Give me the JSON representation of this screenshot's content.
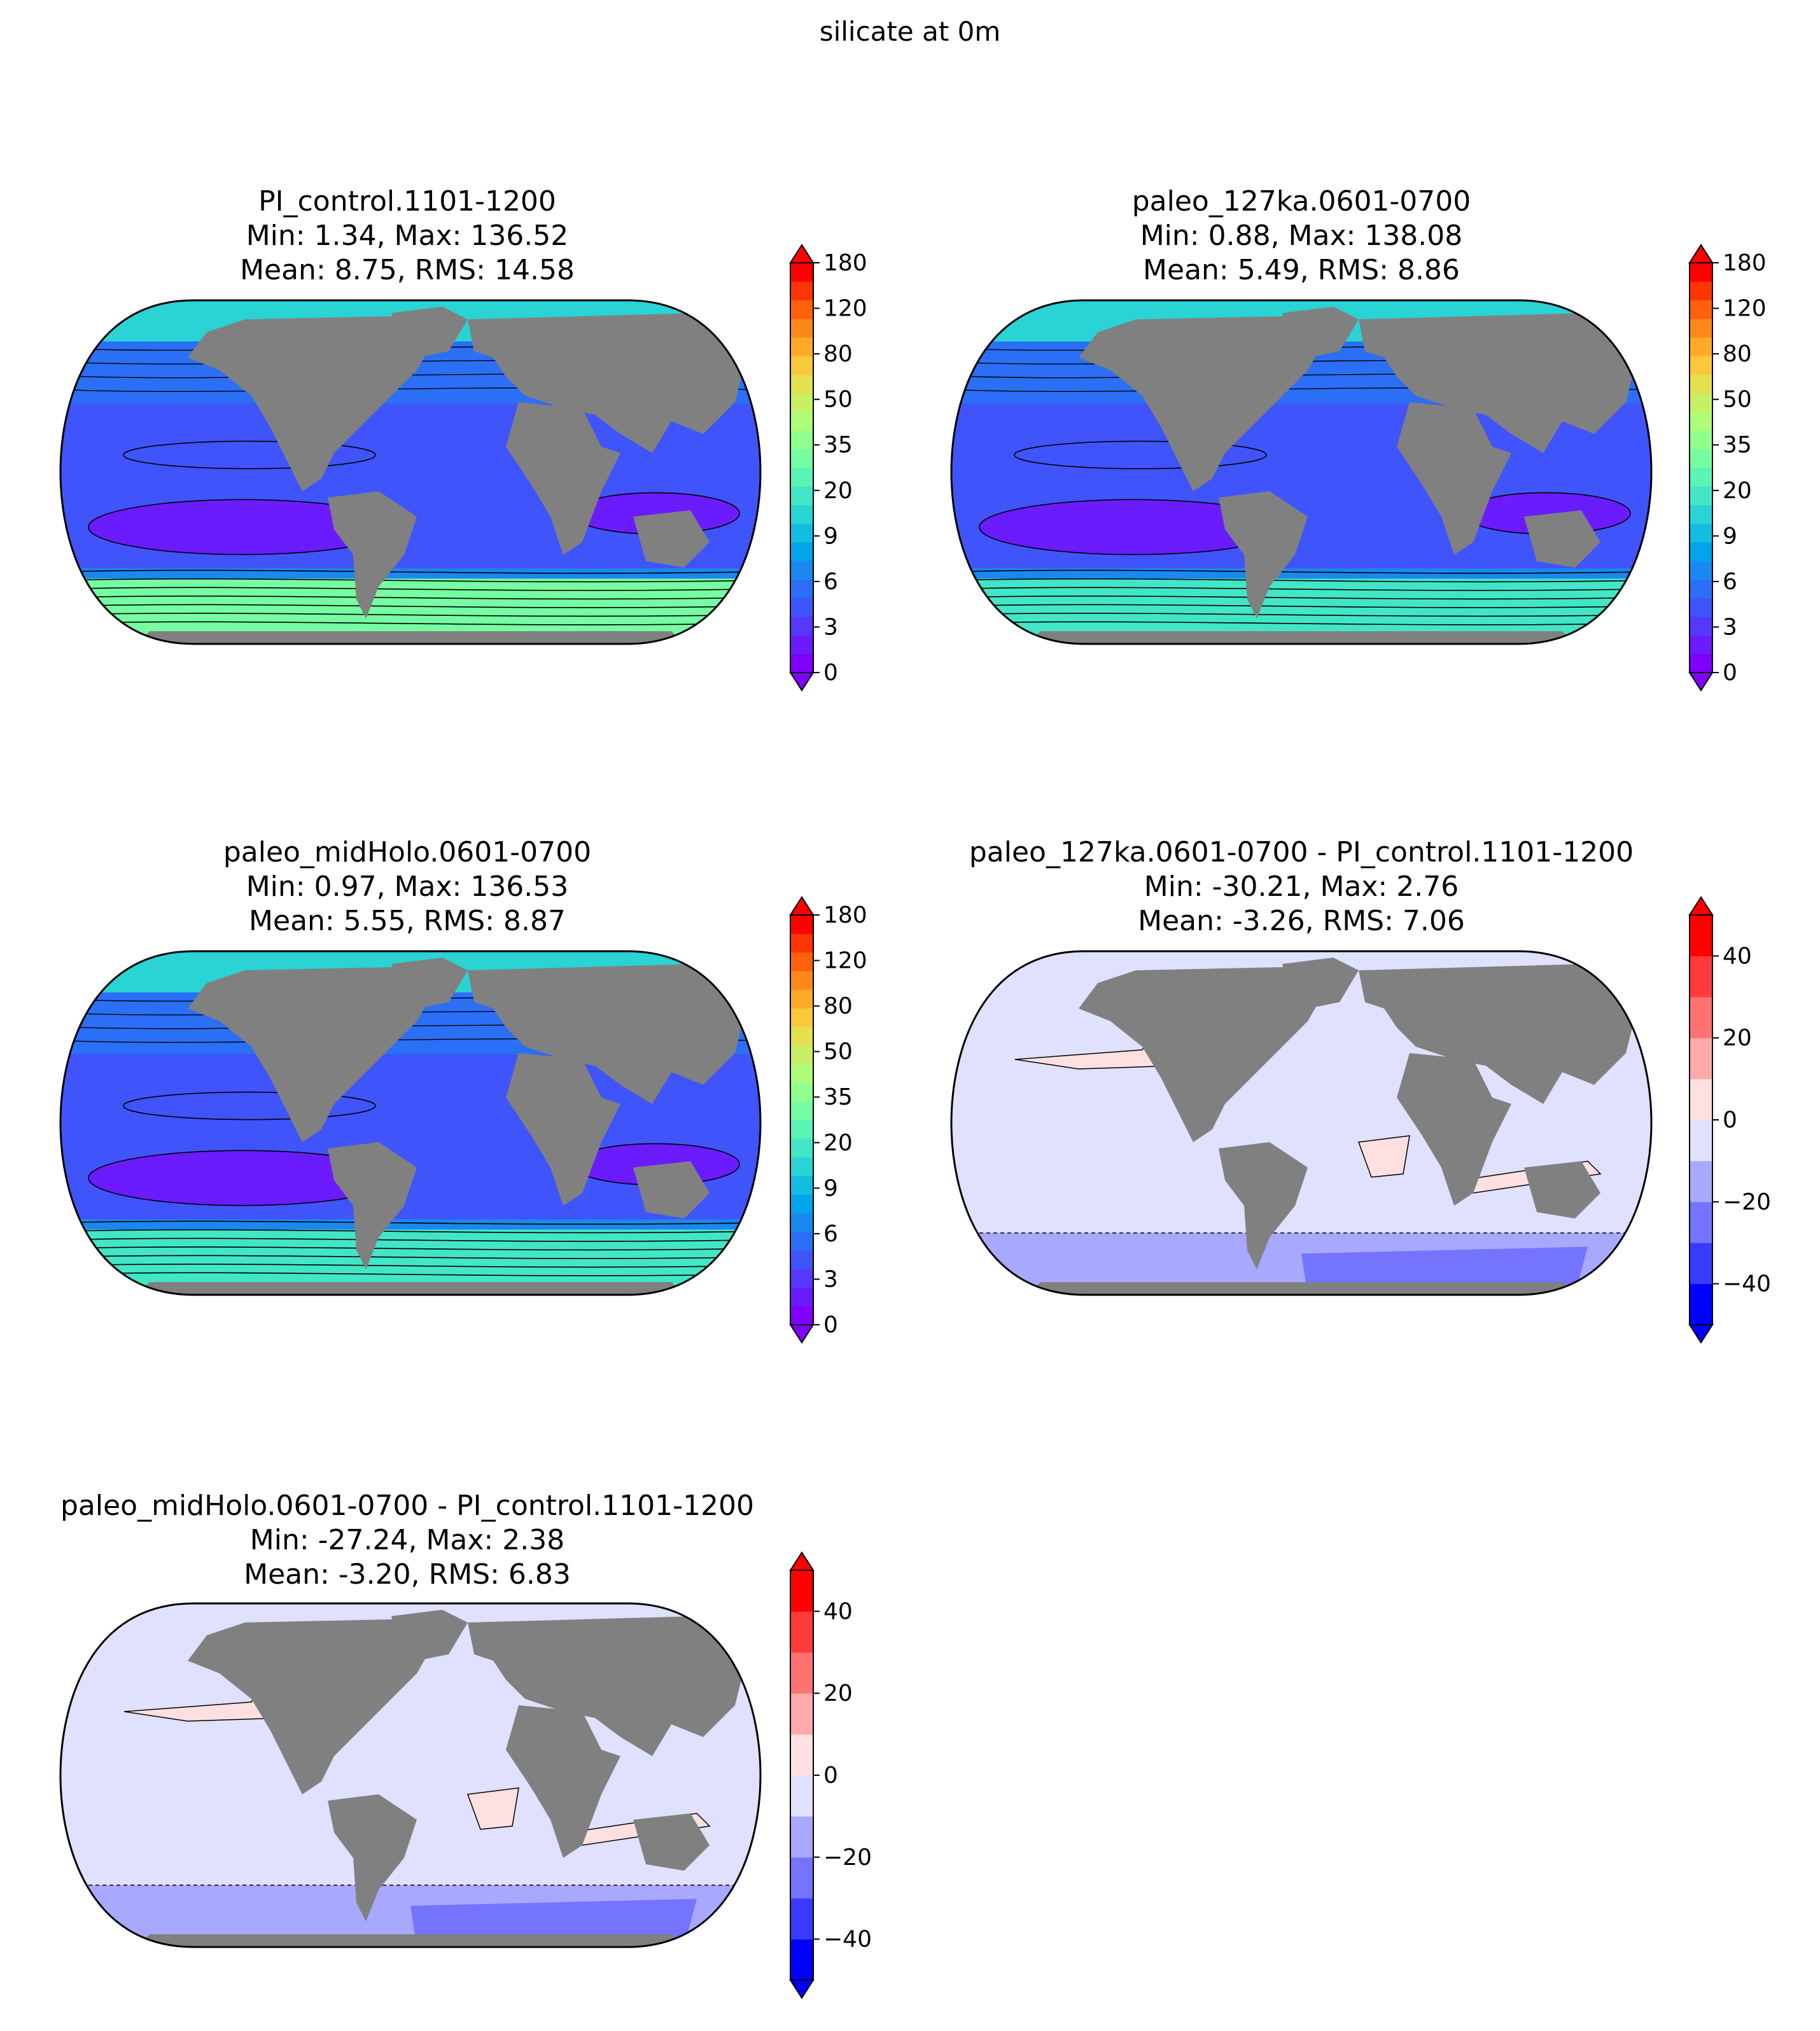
{
  "figure": {
    "suptitle": "silicate at 0m",
    "land_color": "#808080"
  },
  "colorscales": {
    "absolute": {
      "ticks": [
        "0",
        "3",
        "6",
        "9",
        "20",
        "35",
        "50",
        "80",
        "120",
        "180"
      ],
      "colors": [
        "#7f00ff",
        "#6a1cfe",
        "#5638fd",
        "#4054fb",
        "#2a6ff6",
        "#1a88f0",
        "#00a4e8",
        "#14bce0",
        "#2ad3d4",
        "#42e6c6",
        "#5af4b4",
        "#76fca2",
        "#90ff8e",
        "#aefc78",
        "#c8f064",
        "#e2e04e",
        "#fac83a",
        "#ffaa28",
        "#ff8818",
        "#ff600c",
        "#ff3404",
        "#ff0000"
      ],
      "extend": "both"
    },
    "difference": {
      "ticks": [
        "−40",
        "−20",
        "0",
        "20",
        "40"
      ],
      "tick_values": [
        -40,
        -20,
        0,
        20,
        40
      ],
      "vmin": -50,
      "vmax": 50,
      "colors": [
        "#0000ff",
        "#3a3aff",
        "#7474ff",
        "#a8a8ff",
        "#e0e0ff",
        "#ffe0e0",
        "#ffaaaa",
        "#ff7272",
        "#ff3a3a",
        "#ff0000"
      ],
      "extend": "both"
    }
  },
  "chart_data": [
    {
      "type": "heatmap",
      "projection": "Robinson",
      "title": "PI_control.1101-1200",
      "stats_min_max": "Min: 1.34, Max: 136.52",
      "stats_mean_rms": "Mean: 8.75, RMS: 14.58",
      "min": 1.34,
      "max": 136.52,
      "mean": 8.75,
      "rms": 14.58,
      "colorbar": "absolute",
      "colorbar_ticks": [
        0,
        3,
        6,
        9,
        20,
        35,
        50,
        80,
        120,
        180
      ],
      "southern_ocean_value": 35
    },
    {
      "type": "heatmap",
      "projection": "Robinson",
      "title": "paleo_127ka.0601-0700",
      "stats_min_max": "Min: 0.88, Max: 138.08",
      "stats_mean_rms": "Mean: 5.49, RMS: 8.86",
      "min": 0.88,
      "max": 138.08,
      "mean": 5.49,
      "rms": 8.86,
      "colorbar": "absolute",
      "colorbar_ticks": [
        0,
        3,
        6,
        9,
        20,
        35,
        50,
        80,
        120,
        180
      ],
      "southern_ocean_value": 20
    },
    {
      "type": "heatmap",
      "projection": "Robinson",
      "title": "paleo_midHolo.0601-0700",
      "stats_min_max": "Min: 0.97, Max: 136.53",
      "stats_mean_rms": "Mean: 5.55, RMS: 8.87",
      "min": 0.97,
      "max": 136.53,
      "mean": 5.55,
      "rms": 8.87,
      "colorbar": "absolute",
      "colorbar_ticks": [
        0,
        3,
        6,
        9,
        20,
        35,
        50,
        80,
        120,
        180
      ],
      "southern_ocean_value": 20
    },
    {
      "type": "heatmap",
      "projection": "Robinson",
      "title": "paleo_127ka.0601-0700 - PI_control.1101-1200",
      "stats_min_max": "Min: -30.21, Max: 2.76",
      "stats_mean_rms": "Mean: -3.26, RMS: 7.06",
      "min": -30.21,
      "max": 2.76,
      "mean": -3.26,
      "rms": 7.06,
      "colorbar": "difference",
      "colorbar_ticks": [
        -40,
        -20,
        0,
        20,
        40
      ]
    },
    {
      "type": "heatmap",
      "projection": "Robinson",
      "title": "paleo_midHolo.0601-0700 - PI_control.1101-1200",
      "stats_min_max": "Min: -27.24, Max: 2.38",
      "stats_mean_rms": "Mean: -3.20, RMS: 6.83",
      "min": -27.24,
      "max": 2.38,
      "mean": -3.2,
      "rms": 6.83,
      "colorbar": "difference",
      "colorbar_ticks": [
        -40,
        -20,
        0,
        20,
        40
      ]
    }
  ]
}
